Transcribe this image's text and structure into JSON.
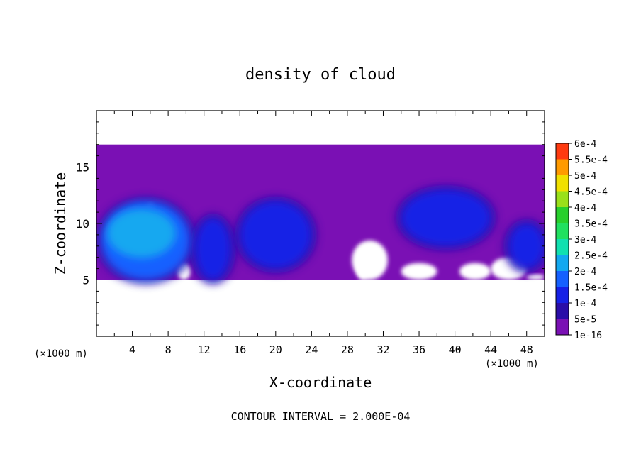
{
  "chart_data": {
    "type": "heatmap",
    "title": "density of cloud",
    "xlabel": "X-coordinate",
    "ylabel": "Z-coordinate",
    "x_unit": "(×1000 m)",
    "y_unit": "(×1000 m)",
    "xlim": [
      0,
      50
    ],
    "ylim": [
      0,
      20
    ],
    "x_ticks": [
      4,
      8,
      12,
      16,
      20,
      24,
      28,
      32,
      36,
      40,
      44,
      48
    ],
    "y_ticks": [
      5,
      10,
      15
    ],
    "contour_interval": "CONTOUR INTERVAL = 2.000E-04",
    "colorbar": {
      "levels": [
        "1e-16",
        "5e-5",
        "1e-4",
        "1.5e-4",
        "2e-4",
        "2.5e-4",
        "3e-4",
        "3.5e-4",
        "4e-4",
        "4.5e-4",
        "5e-4",
        "5.5e-4",
        "6e-4"
      ],
      "colors": [
        "#7a10b4",
        "#2a0da8",
        "#1620e6",
        "#1560ff",
        "#12a8f0",
        "#10e0b0",
        "#20e060",
        "#28d02c",
        "#9ae01a",
        "#f0e000",
        "#ff9a00",
        "#ff3a10",
        "#ff8a8a"
      ]
    },
    "regions": [
      {
        "name": "cloud-layer",
        "x": [
          0,
          50
        ],
        "z": [
          5,
          17
        ],
        "level": "1e-16"
      },
      {
        "name": "cell-1",
        "x": [
          0.5,
          10.5
        ],
        "z": [
          5,
          12
        ],
        "level": "1.5e-4",
        "peak": "2e-4"
      },
      {
        "name": "cell-2",
        "x": [
          11,
          15
        ],
        "z": [
          5,
          10.5
        ],
        "level": "1e-4"
      },
      {
        "name": "cell-3",
        "x": [
          16,
          24
        ],
        "z": [
          6,
          12
        ],
        "level": "1e-4"
      },
      {
        "name": "cell-4",
        "x": [
          34,
          44
        ],
        "z": [
          8,
          13
        ],
        "level": "1e-4"
      },
      {
        "name": "cell-5",
        "x": [
          46,
          50
        ],
        "z": [
          6,
          10
        ],
        "level": "1e-4"
      }
    ]
  },
  "note_text": "CONTOUR INTERVAL = 2.000E-04"
}
